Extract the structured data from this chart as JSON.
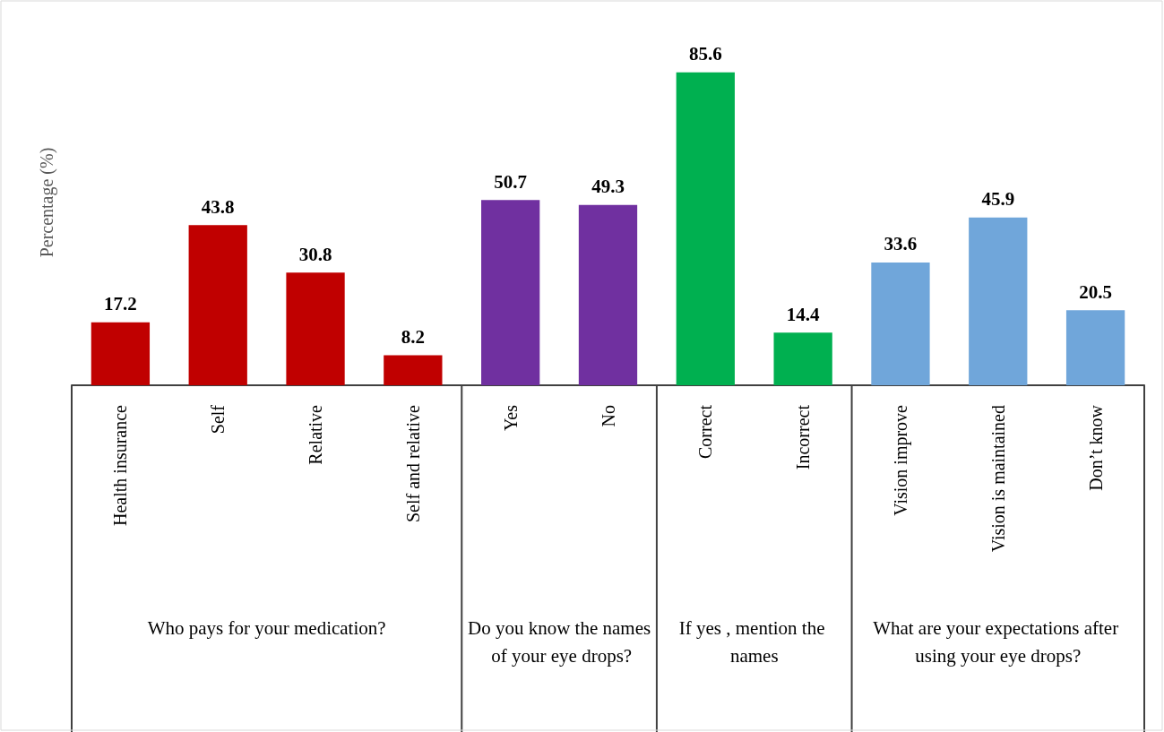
{
  "chart_data": {
    "type": "bar",
    "ylabel": "Percentage (%)",
    "categories": [
      "Health insurance",
      "Self",
      "Relative",
      "Self and relative",
      "Yes",
      "No",
      "Correct",
      "Incorrect",
      "Vision improve",
      "Vision is maintained",
      "Don’t know"
    ],
    "values": [
      17.2,
      43.8,
      30.8,
      8.2,
      50.7,
      49.3,
      85.6,
      14.4,
      33.6,
      45.9,
      20.5
    ],
    "colors": [
      "#c00000",
      "#c00000",
      "#c00000",
      "#c00000",
      "#7030a0",
      "#7030a0",
      "#00b050",
      "#00b050",
      "#70a6da",
      "#70a6da",
      "#70a6da"
    ],
    "annotations": [
      "Who pays for your medication?",
      "Do you know the names of your eye drops?",
      "If yes , mention the names",
      "What are your expectations after using your eye drops?"
    ],
    "data_labels": true
  }
}
